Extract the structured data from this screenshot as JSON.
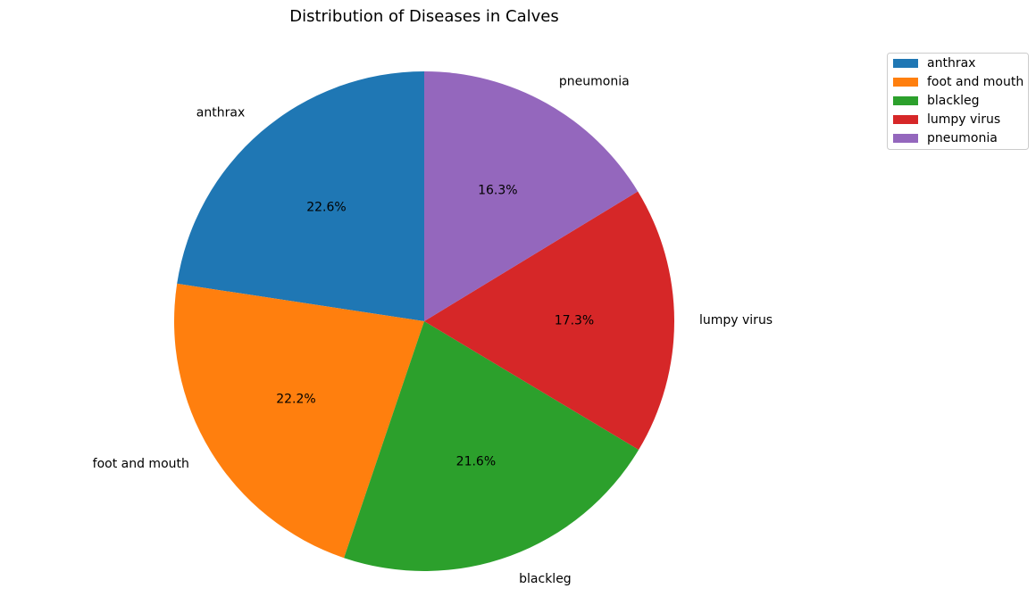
{
  "chart_data": {
    "type": "pie",
    "title": "Distribution of Diseases in Calves",
    "labels": [
      "anthrax",
      "foot and mouth",
      "blackleg",
      "lumpy virus",
      "pneumonia"
    ],
    "values": [
      22.6,
      22.2,
      21.6,
      17.3,
      16.3
    ],
    "percent_labels": [
      "22.6%",
      "22.2%",
      "21.6%",
      "17.3%",
      "16.3%"
    ],
    "colors": [
      "#1f77b4",
      "#ff7f0e",
      "#2ca02c",
      "#d62728",
      "#9467bd"
    ],
    "start_angle": 90,
    "direction": "counterclockwise",
    "legend": {
      "placement": "top-right",
      "entries": [
        "anthrax",
        "foot and mouth",
        "blackleg",
        "lumpy virus",
        "pneumonia"
      ]
    }
  }
}
